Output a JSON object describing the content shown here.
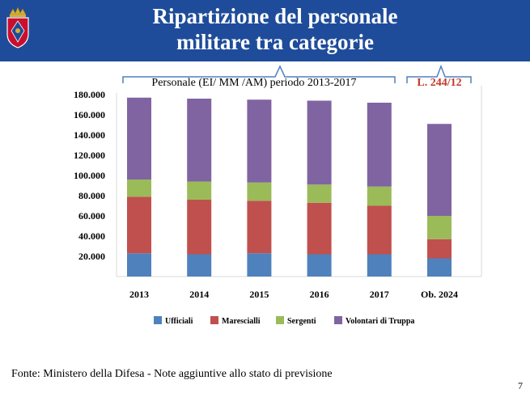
{
  "header": {
    "title_line1": "Ripartizione del personale",
    "title_line2": "militare tra categorie",
    "emblem_icon": "army-crest-icon",
    "background_color": "#1f4c9a"
  },
  "chart_data": {
    "type": "bar",
    "stacked": true,
    "title": "",
    "xlabel": "",
    "ylabel": "",
    "categories": [
      "2013",
      "2014",
      "2015",
      "2016",
      "2017",
      "Ob. 2024"
    ],
    "ylim": [
      0,
      180000
    ],
    "yticks": [
      20000,
      40000,
      60000,
      80000,
      100000,
      120000,
      140000,
      160000,
      180000
    ],
    "ytick_labels": [
      "20.000",
      "40.000",
      "60.000",
      "80.000",
      "100.000",
      "120.000",
      "140.000",
      "160.000",
      "180.000"
    ],
    "grid": false,
    "legend_position": "bottom",
    "series": [
      {
        "name": "Ufficiali",
        "color": "#4f81bd",
        "values": [
          23000,
          22000,
          23000,
          22000,
          22000,
          18000
        ]
      },
      {
        "name": "Marescialli",
        "color": "#c0504d",
        "values": [
          56000,
          54000,
          52000,
          51000,
          48000,
          19000
        ]
      },
      {
        "name": "Sergenti",
        "color": "#9bbb59",
        "values": [
          17000,
          18000,
          18000,
          18000,
          19000,
          23000
        ]
      },
      {
        "name": "Volontari di Truppa",
        "color": "#8064a2",
        "values": [
          81000,
          82000,
          82000,
          83000,
          83000,
          91000
        ]
      }
    ],
    "annotations": [
      {
        "text": "Personale (EI/ MM /AM) periodo 2013-2017",
        "spans": [
          "2013",
          "2017"
        ]
      },
      {
        "text": "L. 244/12",
        "spans": [
          "Ob. 2024"
        ],
        "color": "#c0392b"
      }
    ]
  },
  "footer": {
    "source": "Fonte: Ministero della Difesa - Note aggiuntive allo stato di previsione",
    "page_number": "7"
  }
}
